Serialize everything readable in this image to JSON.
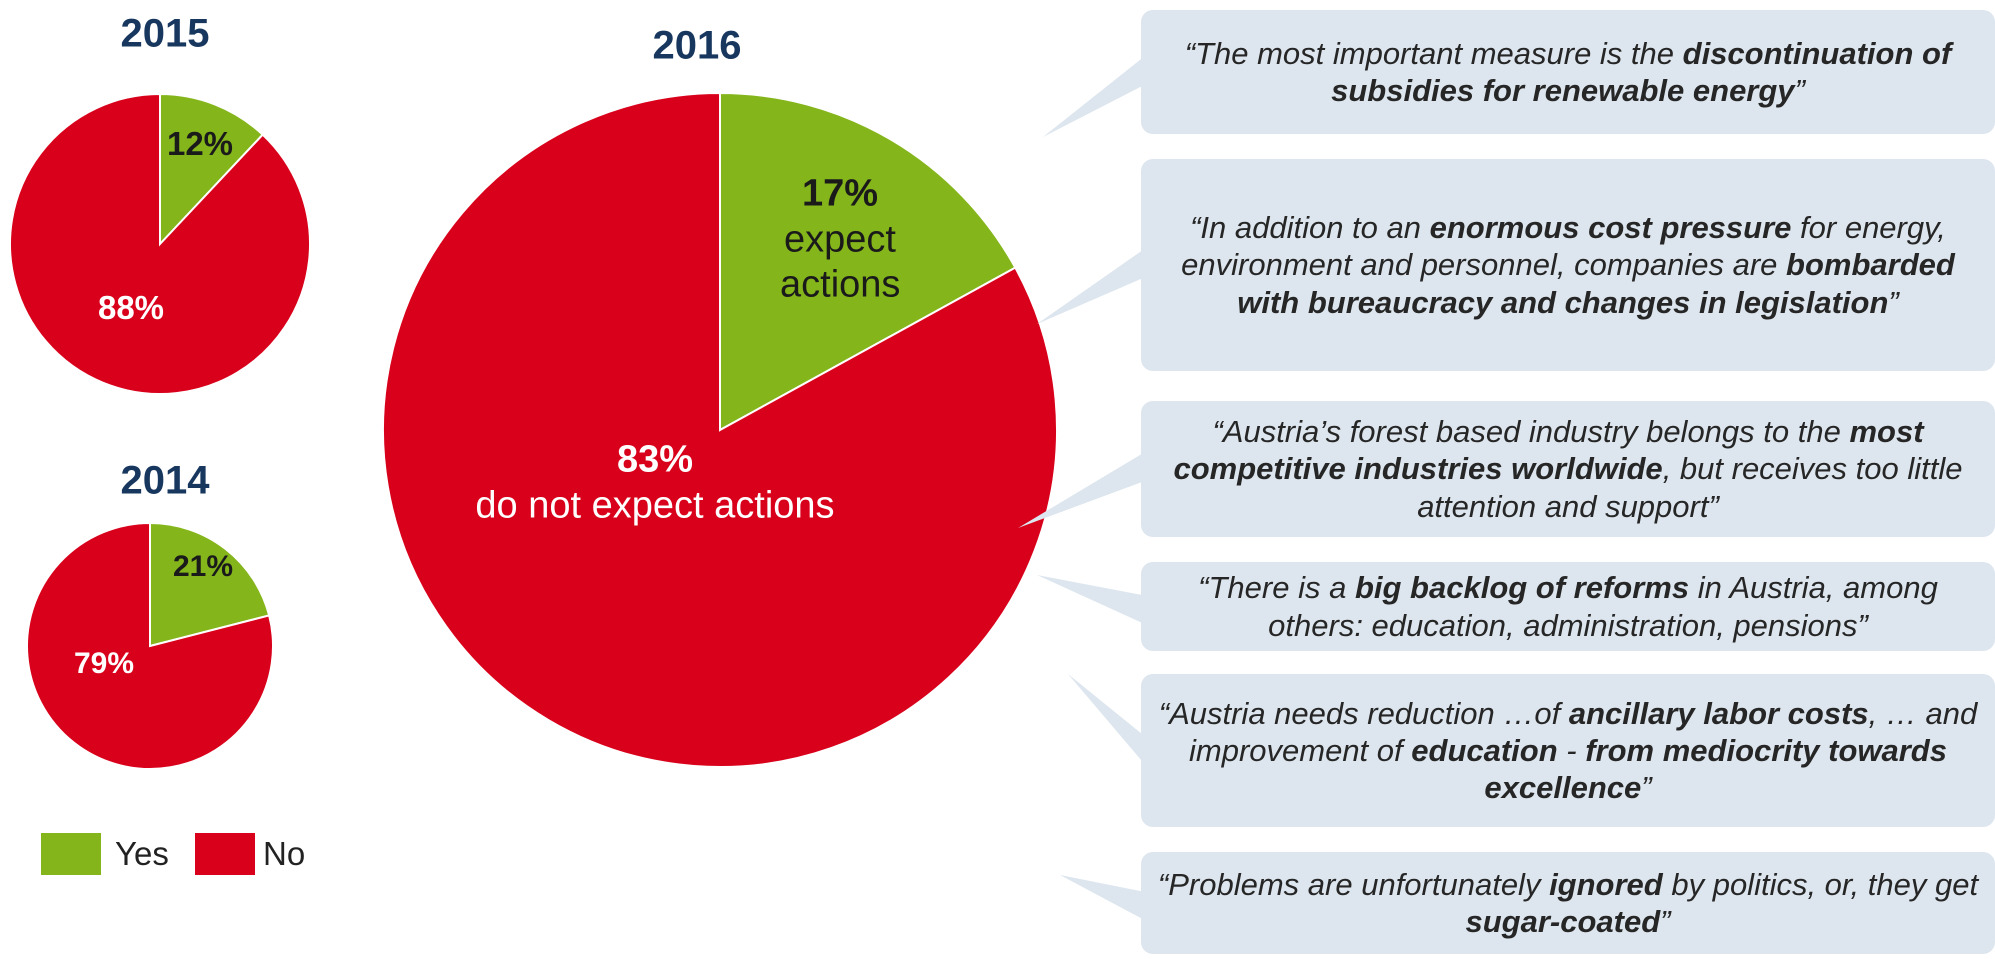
{
  "chart_data": [
    {
      "type": "pie",
      "title": "2015",
      "values": [
        12,
        88
      ],
      "value_labels": [
        "12%",
        "88%"
      ]
    },
    {
      "type": "pie",
      "title": "2014",
      "values": [
        21,
        79
      ],
      "value_labels": [
        "21%",
        "79%"
      ]
    },
    {
      "type": "pie",
      "title": "2016",
      "values": [
        17,
        83
      ],
      "value_labels": [
        "17%",
        "83%"
      ],
      "annotations": [
        "expect actions",
        "do not expect actions"
      ]
    }
  ],
  "legend": {
    "categories": [
      "Yes",
      "No"
    ],
    "colors": [
      "#84b51b",
      "#d9001b"
    ]
  },
  "quotes": [
    [
      {
        "text": "“The most important measure is the ",
        "bold": false
      },
      {
        "text": "discontinuation of subsidies for renewable energy",
        "bold": true
      },
      {
        "text": "”",
        "bold": false
      }
    ],
    [
      {
        "text": "“In addition to an ",
        "bold": false
      },
      {
        "text": "enormous cost pressure",
        "bold": true
      },
      {
        "text": " for energy, environment and personnel, companies are ",
        "bold": false
      },
      {
        "text": "bombarded with bureaucracy and changes in legislation",
        "bold": true
      },
      {
        "text": "”",
        "bold": false
      }
    ],
    [
      {
        "text": "“Austria’s forest based industry belongs to the ",
        "bold": false
      },
      {
        "text": "most competitive industries worldwide",
        "bold": true
      },
      {
        "text": ", but receives too little attention and support”",
        "bold": false
      }
    ],
    [
      {
        "text": "“There is a ",
        "bold": false
      },
      {
        "text": "big backlog of reforms",
        "bold": true
      },
      {
        "text": " in Austria, among others: education, administration, pensions”",
        "bold": false
      }
    ],
    [
      {
        "text": "“Austria needs reduction …of ",
        "bold": false
      },
      {
        "text": "ancillary labor costs",
        "bold": true
      },
      {
        "text": ", … and improvement of ",
        "bold": false
      },
      {
        "text": "education",
        "bold": true
      },
      {
        "text": " - ",
        "bold": false
      },
      {
        "text": "from mediocrity towards excellence",
        "bold": true
      },
      {
        "text": "”",
        "bold": false
      }
    ],
    [
      {
        "text": "“Problems are unfortunately ",
        "bold": false
      },
      {
        "text": "ignored",
        "bold": true
      },
      {
        "text": " by politics, or, they get ",
        "bold": false
      },
      {
        "text": "sugar-coated",
        "bold": true
      },
      {
        "text": "”",
        "bold": false
      }
    ]
  ]
}
